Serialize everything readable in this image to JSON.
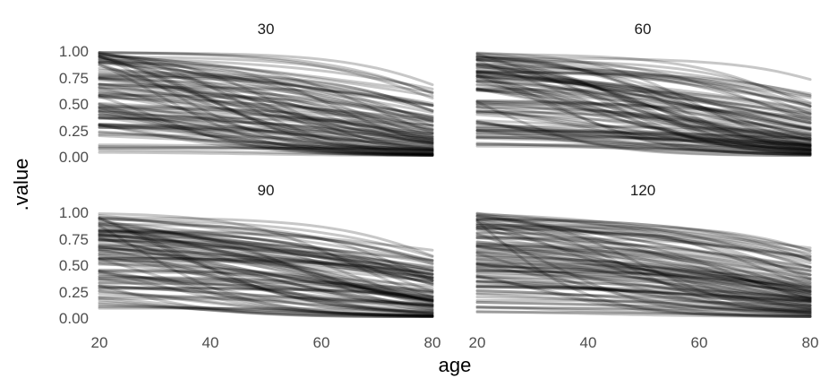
{
  "chart_data": {
    "type": "line",
    "layout": "facet-grid-2x2",
    "xlabel": "age",
    "ylabel": ".value",
    "xlim": [
      20,
      80
    ],
    "ylim": [
      0,
      1
    ],
    "x_ticks": [
      20,
      40,
      60,
      80
    ],
    "y_ticks": [
      0,
      0.25,
      0.5,
      0.75,
      1
    ],
    "x_tick_labels": [
      "20",
      "40",
      "60",
      "80"
    ],
    "y_tick_labels": [
      "0.00",
      "0.25",
      "0.50",
      "0.75",
      "1.00"
    ],
    "grid": false,
    "line_color": "#000000",
    "line_opacity": 0.22,
    "curves_per_panel": 100,
    "curve_family": "logistic decay in age (value falls from ~1 toward ~0)",
    "panels": [
      {
        "title": "30"
      },
      {
        "title": "60"
      },
      {
        "title": "90"
      },
      {
        "title": "120"
      }
    ]
  }
}
